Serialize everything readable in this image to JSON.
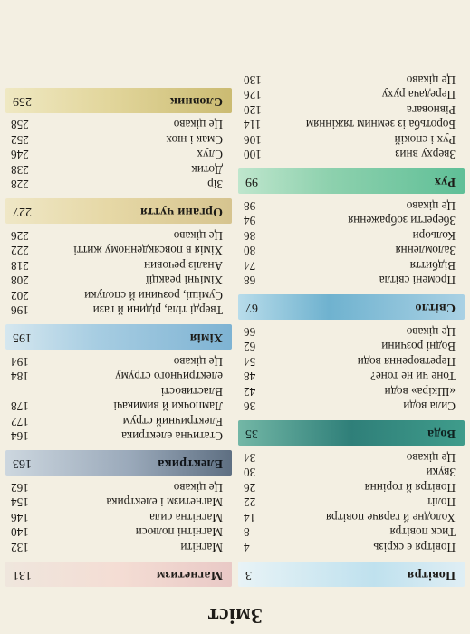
{
  "title": "Зміст",
  "left": [
    {
      "section": "Повітря",
      "page": "3",
      "style": "b-sky"
    },
    {
      "t": "Повітря є скрізь",
      "p": "4"
    },
    {
      "t": "Тиск повітря",
      "p": "8"
    },
    {
      "t": "Холодне й гаряче повітря",
      "p": "14"
    },
    {
      "t": "Політ",
      "p": "22"
    },
    {
      "t": "Повітря й горіння",
      "p": "26"
    },
    {
      "t": "Звуки",
      "p": "30"
    },
    {
      "t": "Це цікаво",
      "p": "34"
    },
    {
      "section": "Вода",
      "page": "35",
      "style": "b-water"
    },
    {
      "t": "Сила води",
      "p": "36"
    },
    {
      "t": "«Шкіра» води",
      "p": "42"
    },
    {
      "t": "Тоне чи не тоне?",
      "p": "48"
    },
    {
      "t": "Перетворення води",
      "p": "54"
    },
    {
      "t": "Водні розчини",
      "p": "62"
    },
    {
      "t": "Це цікаво",
      "p": "66"
    },
    {
      "section": "Світло",
      "page": "67",
      "style": "b-light"
    },
    {
      "t": "Промені світла",
      "p": "68"
    },
    {
      "t": "Відбиття",
      "p": "74"
    },
    {
      "t": "Заломлення",
      "p": "80"
    },
    {
      "t": "Кольори",
      "p": "86"
    },
    {
      "t": "Зберегти зображення",
      "p": "94"
    },
    {
      "t": "Це цікаво",
      "p": "98"
    },
    {
      "section": "Рух",
      "page": "99",
      "style": "b-move"
    },
    {
      "t": "Зверху вниз",
      "p": "100"
    },
    {
      "t": "Рух і спокій",
      "p": "106"
    },
    {
      "t": "Боротьба із земним тяжінням",
      "p": "114"
    },
    {
      "t": "Рівновага",
      "p": "120"
    },
    {
      "t": "Передача руху",
      "p": "126"
    },
    {
      "t": "Це цікаво",
      "p": "130"
    }
  ],
  "right": [
    {
      "section": "Магнетизм",
      "page": "131",
      "style": "b-magnet"
    },
    {
      "t": "Магніти",
      "p": "132"
    },
    {
      "t": "Магнітні полюси",
      "p": "140"
    },
    {
      "t": "Магнітна сила",
      "p": "146"
    },
    {
      "t": "Магнетизм і електрика",
      "p": "154"
    },
    {
      "t": "Це цікаво",
      "p": "162"
    },
    {
      "section": "Електрика",
      "page": "163",
      "style": "b-elec"
    },
    {
      "t": "Статична електрика",
      "p": "164"
    },
    {
      "t": "Електричний струм",
      "p": "172"
    },
    {
      "t": "Лампочки й вимикачі",
      "p": "178"
    },
    {
      "t": "Властивості",
      "p": ""
    },
    {
      "t": "електричного струму",
      "p": "184"
    },
    {
      "t": "Це цікаво",
      "p": "194"
    },
    {
      "section": "Хімія",
      "page": "195",
      "style": "b-chem"
    },
    {
      "t": "Тверді тіла, рідини й гази",
      "p": "196"
    },
    {
      "t": "Суміші, розчини й сполуки",
      "p": "202"
    },
    {
      "t": "Хімічні реакції",
      "p": "208"
    },
    {
      "t": "Аналіз речовин",
      "p": "218"
    },
    {
      "t": "Хімія в повсякденному житті",
      "p": "222"
    },
    {
      "t": "Це цікаво",
      "p": "226"
    },
    {
      "section": "Органи чуття",
      "page": "227",
      "style": "b-sense"
    },
    {
      "t": "Зір",
      "p": "228"
    },
    {
      "t": "Дотик",
      "p": "238"
    },
    {
      "t": "Слух",
      "p": "246"
    },
    {
      "t": "Смак і нюх",
      "p": "252"
    },
    {
      "t": "Це цікаво",
      "p": "258"
    },
    {
      "section": "Словник",
      "page": "259",
      "style": "b-dict"
    }
  ]
}
